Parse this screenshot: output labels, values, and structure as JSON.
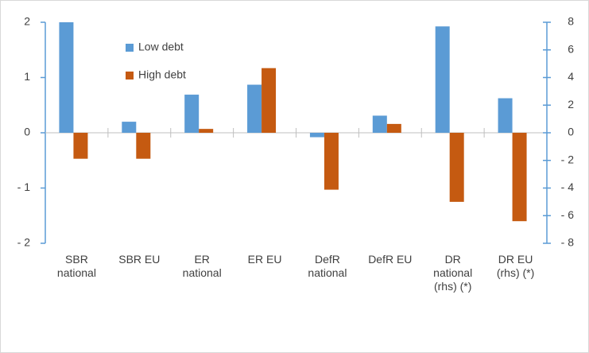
{
  "chart_data": {
    "type": "bar",
    "categories": [
      "SBR national",
      "SBR EU",
      "ER national",
      "ER EU",
      "DefR national",
      "DefR EU",
      "DR national (rhs) (*)",
      "DR EU (rhs) (*)"
    ],
    "axes": [
      "y",
      "y",
      "y",
      "y",
      "y",
      "y",
      "y2",
      "y2"
    ],
    "series": [
      {
        "name": "Low debt",
        "color": "#5b9bd5",
        "values": [
          2.0,
          0.2,
          0.69,
          0.87,
          -0.08,
          0.31,
          7.7,
          2.5
        ]
      },
      {
        "name": "High debt",
        "color": "#c55a11",
        "values": [
          -0.47,
          -0.47,
          0.07,
          1.17,
          -1.03,
          0.16,
          -5.0,
          -6.4
        ]
      }
    ],
    "ylim": [
      -2,
      2
    ],
    "yticks": [
      {
        "value": -2,
        "label": "- 2"
      },
      {
        "value": -1,
        "label": "- 1"
      },
      0,
      1,
      2
    ],
    "y2lim": [
      -8,
      8
    ],
    "y2ticks": [
      {
        "value": -8,
        "label": "- 8"
      },
      {
        "value": -6,
        "label": "- 6"
      },
      {
        "value": -4,
        "label": "- 4"
      },
      {
        "value": -2,
        "label": "- 2"
      },
      0,
      2,
      4,
      6,
      8
    ],
    "legend": "upper left"
  }
}
